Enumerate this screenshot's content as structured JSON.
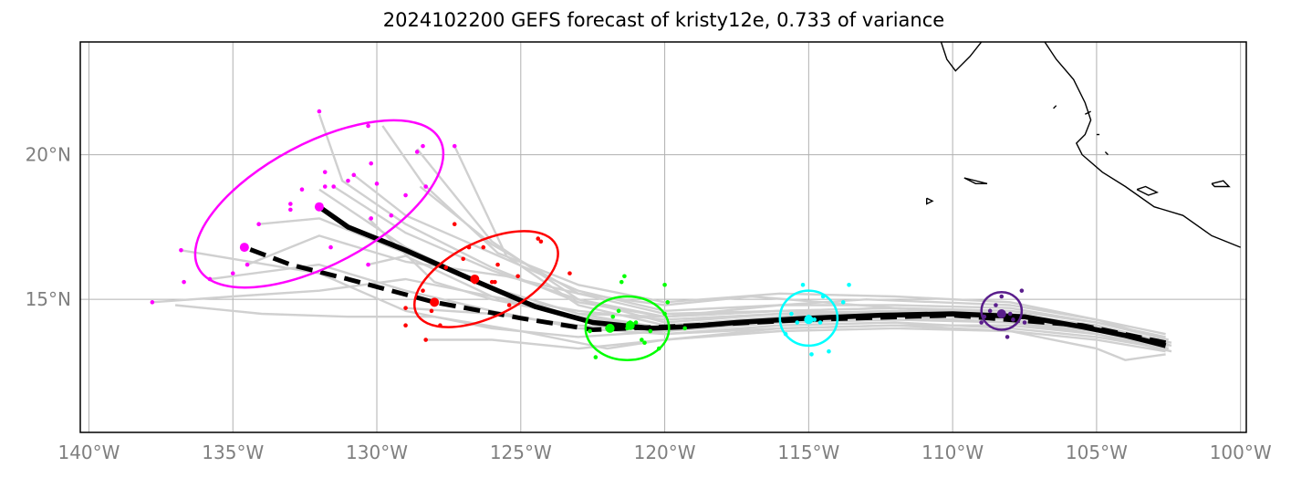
{
  "title": "2024102200 GEFS forecast of kristy12e, 0.733 of variance",
  "map": {
    "lon_range": [
      -140.3,
      -99.8
    ],
    "lat_range": [
      10.4,
      23.9
    ],
    "lon_ticks": [
      -140,
      -135,
      -130,
      -125,
      -120,
      -115,
      -110,
      -105,
      -100
    ],
    "lon_tick_labels": [
      "140°W",
      "135°W",
      "130°W",
      "125°W",
      "120°W",
      "115°W",
      "110°W",
      "105°W",
      "100°W"
    ],
    "lat_ticks": [
      15,
      20
    ],
    "lat_tick_labels": [
      "15°N",
      "20°N"
    ],
    "grid": true,
    "colors": {
      "ensemble_track": "#d0d0d0",
      "mean_track": "#000000",
      "coastline": "#000000",
      "grid": "#b0b0b0",
      "tick_label": "#7f7f7f"
    }
  },
  "mean_track": [
    [
      -102.6,
      13.4
    ],
    [
      -104.0,
      13.75
    ],
    [
      -105.5,
      14.05
    ],
    [
      -107.5,
      14.4
    ],
    [
      -110.0,
      14.5
    ],
    [
      -112.5,
      14.45
    ],
    [
      -115.0,
      14.35
    ],
    [
      -117.5,
      14.2
    ],
    [
      -119.3,
      14.05
    ],
    [
      -120.5,
      14.0
    ],
    [
      -122.5,
      14.2
    ],
    [
      -124.5,
      14.75
    ],
    [
      -126.5,
      15.6
    ],
    [
      -129.0,
      16.7
    ],
    [
      -131.0,
      17.5
    ],
    [
      -132.0,
      18.2
    ]
  ],
  "mean_track_dashed": [
    [
      -102.6,
      13.5
    ],
    [
      -105.5,
      14.1
    ],
    [
      -110.0,
      14.45
    ],
    [
      -115.0,
      14.3
    ],
    [
      -120.0,
      14.05
    ],
    [
      -122.5,
      13.95
    ],
    [
      -125.0,
      14.35
    ],
    [
      -128.0,
      14.9
    ],
    [
      -131.0,
      15.7
    ],
    [
      -133.0,
      16.2
    ],
    [
      -134.6,
      16.8
    ]
  ],
  "ellipses": [
    {
      "color": "#ff00ff",
      "center": [
        -132.0,
        18.3
      ],
      "width_deg": 9.5,
      "height_deg": 4.2,
      "angle_deg": 28
    },
    {
      "color": "#ff0000",
      "center": [
        -126.2,
        15.7
      ],
      "width_deg": 5.4,
      "height_deg": 2.6,
      "angle_deg": 26
    },
    {
      "color": "#00ff00",
      "center": [
        -121.3,
        14.0
      ],
      "width_deg": 2.9,
      "height_deg": 2.2,
      "angle_deg": 0
    },
    {
      "color": "#00ffff",
      "center": [
        -115.0,
        14.35
      ],
      "width_deg": 2.0,
      "height_deg": 1.9,
      "angle_deg": 0
    },
    {
      "color": "#5a1e8c",
      "center": [
        -108.3,
        14.6
      ],
      "width_deg": 1.4,
      "height_deg": 1.3,
      "angle_deg": 0
    }
  ],
  "member_points": {
    "#ff00ff": [
      [
        -137.8,
        14.9
      ],
      [
        -136.8,
        16.7
      ],
      [
        -135.8,
        15.7
      ],
      [
        -135.0,
        15.9
      ],
      [
        -134.5,
        16.2
      ],
      [
        -134.1,
        17.6
      ],
      [
        -133.0,
        18.3
      ],
      [
        -132.6,
        18.8
      ],
      [
        -132.0,
        21.5
      ],
      [
        -131.8,
        19.4
      ],
      [
        -131.5,
        18.9
      ],
      [
        -131.0,
        19.1
      ],
      [
        -130.8,
        19.3
      ],
      [
        -130.3,
        16.2
      ],
      [
        -130.3,
        21.0
      ],
      [
        -130.0,
        19.0
      ],
      [
        -129.5,
        17.9
      ],
      [
        -129.0,
        18.6
      ],
      [
        -128.6,
        20.1
      ],
      [
        -128.4,
        20.3
      ],
      [
        -128.3,
        18.9
      ],
      [
        -127.3,
        20.3
      ],
      [
        -136.7,
        15.6
      ],
      [
        -133.0,
        18.1
      ],
      [
        -131.6,
        16.8
      ],
      [
        -130.2,
        17.8
      ],
      [
        -130.2,
        19.7
      ],
      [
        -131.8,
        18.9
      ]
    ],
    "#ff0000": [
      [
        -129.0,
        14.1
      ],
      [
        -129.0,
        14.7
      ],
      [
        -128.4,
        15.3
      ],
      [
        -128.3,
        13.6
      ],
      [
        -128.0,
        14.9
      ],
      [
        -127.6,
        16.1
      ],
      [
        -127.3,
        17.6
      ],
      [
        -127.0,
        16.4
      ],
      [
        -126.8,
        16.8
      ],
      [
        -126.3,
        16.8
      ],
      [
        -126.0,
        15.6
      ],
      [
        -125.8,
        16.2
      ],
      [
        -125.4,
        14.8
      ],
      [
        -125.1,
        15.8
      ],
      [
        -124.3,
        17.0
      ],
      [
        -123.3,
        15.9
      ],
      [
        -127.8,
        14.1
      ],
      [
        -128.1,
        14.6
      ],
      [
        -126.6,
        15.6
      ],
      [
        -125.9,
        15.6
      ],
      [
        -124.4,
        17.1
      ]
    ],
    "#00ff00": [
      [
        -122.6,
        13.9
      ],
      [
        -122.4,
        13.0
      ],
      [
        -121.8,
        14.4
      ],
      [
        -121.6,
        14.6
      ],
      [
        -121.4,
        15.8
      ],
      [
        -121.0,
        14.2
      ],
      [
        -120.8,
        13.6
      ],
      [
        -120.5,
        13.9
      ],
      [
        -120.2,
        13.3
      ],
      [
        -120.0,
        14.5
      ],
      [
        -119.9,
        14.9
      ],
      [
        -119.3,
        14.0
      ],
      [
        -121.2,
        14.2
      ],
      [
        -122.0,
        14.0
      ],
      [
        -121.3,
        14.0
      ],
      [
        -120.0,
        15.5
      ],
      [
        -120.7,
        13.5
      ],
      [
        -121.5,
        15.6
      ]
    ],
    "#00ffff": [
      [
        -115.8,
        13.8
      ],
      [
        -115.6,
        14.5
      ],
      [
        -115.4,
        14.2
      ],
      [
        -115.2,
        15.5
      ],
      [
        -114.9,
        13.1
      ],
      [
        -114.6,
        14.2
      ],
      [
        -114.5,
        15.1
      ],
      [
        -114.3,
        13.2
      ],
      [
        -113.8,
        14.9
      ],
      [
        -113.6,
        15.5
      ],
      [
        -115.0,
        14.4
      ],
      [
        -114.8,
        14.3
      ]
    ],
    "#5a1e8c": [
      [
        -108.9,
        14.4
      ],
      [
        -108.7,
        14.6
      ],
      [
        -108.5,
        14.8
      ],
      [
        -108.3,
        15.1
      ],
      [
        -108.1,
        13.7
      ],
      [
        -107.9,
        14.3
      ],
      [
        -107.6,
        15.3
      ],
      [
        -107.5,
        14.2
      ],
      [
        -108.3,
        14.5
      ],
      [
        -108.0,
        14.5
      ],
      [
        -109.0,
        14.2
      ]
    ]
  },
  "mean_points": [
    {
      "color": "#ff00ff",
      "lonlat": [
        -132.0,
        18.2
      ]
    },
    {
      "color": "#ff00ff",
      "lonlat": [
        -134.6,
        16.8
      ]
    },
    {
      "color": "#ff0000",
      "lonlat": [
        -126.6,
        15.7
      ]
    },
    {
      "color": "#ff0000",
      "lonlat": [
        -128.0,
        14.9
      ]
    },
    {
      "color": "#00ff00",
      "lonlat": [
        -121.2,
        14.1
      ]
    },
    {
      "color": "#00ff00",
      "lonlat": [
        -121.9,
        14.0
      ]
    },
    {
      "color": "#00ffff",
      "lonlat": [
        -115.0,
        14.3
      ]
    },
    {
      "color": "#5a1e8c",
      "lonlat": [
        -108.3,
        14.5
      ]
    }
  ],
  "ensemble_tracks": [
    [
      [
        -102.5,
        13.3
      ],
      [
        -105,
        13.9
      ],
      [
        -108,
        14.3
      ],
      [
        -112,
        14.5
      ],
      [
        -116,
        14.6
      ],
      [
        -120,
        14.4
      ],
      [
        -123,
        14.9
      ],
      [
        -126,
        16.1
      ],
      [
        -129,
        17.6
      ],
      [
        -131.2,
        19.1
      ],
      [
        -132,
        21.4
      ]
    ],
    [
      [
        -102.5,
        13.4
      ],
      [
        -105,
        14.0
      ],
      [
        -108,
        14.4
      ],
      [
        -112,
        14.6
      ],
      [
        -116,
        14.5
      ],
      [
        -120,
        14.2
      ],
      [
        -123,
        15.0
      ],
      [
        -126,
        17.0
      ],
      [
        -128.6,
        20.2
      ]
    ],
    [
      [
        -102.5,
        13.5
      ],
      [
        -105,
        14.1
      ],
      [
        -108,
        14.5
      ],
      [
        -112,
        14.6
      ],
      [
        -116,
        14.4
      ],
      [
        -120,
        14.1
      ],
      [
        -123,
        14.8
      ],
      [
        -125.5,
        16.5
      ],
      [
        -127.3,
        20.3
      ]
    ],
    [
      [
        -102.5,
        13.6
      ],
      [
        -105,
        14.2
      ],
      [
        -108,
        14.6
      ],
      [
        -112,
        14.7
      ],
      [
        -116,
        14.6
      ],
      [
        -120,
        14.5
      ],
      [
        -123,
        15.2
      ],
      [
        -126,
        16.9
      ],
      [
        -128.5,
        18.9
      ]
    ],
    [
      [
        -102.4,
        13.2
      ],
      [
        -105,
        13.8
      ],
      [
        -108,
        14.2
      ],
      [
        -112,
        14.4
      ],
      [
        -116,
        14.4
      ],
      [
        -120,
        14.0
      ],
      [
        -123,
        14.5
      ],
      [
        -126,
        15.4
      ],
      [
        -129,
        16.6
      ],
      [
        -132,
        17.8
      ],
      [
        -134.1,
        17.6
      ]
    ],
    [
      [
        -102.4,
        13.4
      ],
      [
        -105,
        14.0
      ],
      [
        -108,
        14.4
      ],
      [
        -112,
        14.5
      ],
      [
        -116,
        14.5
      ],
      [
        -120,
        14.3
      ],
      [
        -123,
        14.6
      ],
      [
        -126,
        15.1
      ],
      [
        -129,
        15.7
      ],
      [
        -132,
        15.3
      ],
      [
        -135,
        15.1
      ],
      [
        -137.8,
        14.9
      ]
    ],
    [
      [
        -102.4,
        13.5
      ],
      [
        -105,
        14.0
      ],
      [
        -108,
        14.5
      ],
      [
        -112,
        14.6
      ],
      [
        -116,
        14.3
      ],
      [
        -120,
        13.9
      ],
      [
        -123,
        13.7
      ],
      [
        -126,
        14.0
      ],
      [
        -129,
        14.6
      ],
      [
        -132,
        15.9
      ],
      [
        -135,
        16.4
      ],
      [
        -136.8,
        16.7
      ]
    ],
    [
      [
        -102.6,
        13.7
      ],
      [
        -105,
        14.2
      ],
      [
        -108,
        14.7
      ],
      [
        -112,
        14.8
      ],
      [
        -116,
        14.8
      ],
      [
        -120,
        14.4
      ],
      [
        -123,
        14.5
      ],
      [
        -126,
        15.4
      ],
      [
        -129,
        16.8
      ],
      [
        -132,
        18.8
      ]
    ],
    [
      [
        -102.6,
        13.1
      ],
      [
        -104,
        12.9
      ],
      [
        -105,
        13.3
      ],
      [
        -108,
        13.9
      ],
      [
        -112,
        14.1
      ],
      [
        -116,
        14.0
      ],
      [
        -120,
        13.6
      ],
      [
        -123,
        13.3
      ],
      [
        -126,
        13.6
      ],
      [
        -128.3,
        13.6
      ]
    ],
    [
      [
        -102.6,
        13.4
      ],
      [
        -105,
        13.9
      ],
      [
        -108,
        14.2
      ],
      [
        -112,
        14.3
      ],
      [
        -116,
        14.2
      ],
      [
        -120,
        13.9
      ],
      [
        -123,
        14.1
      ],
      [
        -126,
        14.5
      ],
      [
        -129,
        14.7
      ]
    ],
    [
      [
        -102.6,
        13.5
      ],
      [
        -105,
        14.1
      ],
      [
        -108,
        14.4
      ],
      [
        -112,
        14.7
      ],
      [
        -117,
        15.1
      ],
      [
        -120,
        14.8
      ],
      [
        -123,
        15.2
      ],
      [
        -125.5,
        15.8
      ],
      [
        -129,
        16.3
      ],
      [
        -132,
        17.2
      ],
      [
        -134.5,
        16.2
      ]
    ],
    [
      [
        -102.6,
        13.3
      ],
      [
        -105,
        13.7
      ],
      [
        -108,
        14.0
      ],
      [
        -112,
        14.2
      ],
      [
        -116,
        14.1
      ],
      [
        -120,
        13.8
      ],
      [
        -123,
        14.3
      ],
      [
        -126,
        15.1
      ],
      [
        -129,
        16.5
      ],
      [
        -130.3,
        16.2
      ]
    ],
    [
      [
        -102.6,
        13.6
      ],
      [
        -105,
        14.3
      ],
      [
        -108,
        14.8
      ],
      [
        -113,
        15.0
      ],
      [
        -116,
        14.8
      ],
      [
        -120,
        14.6
      ],
      [
        -123,
        15.3
      ],
      [
        -126,
        16.6
      ],
      [
        -129,
        17.9
      ],
      [
        -130.8,
        19.3
      ]
    ],
    [
      [
        -102.6,
        13.2
      ],
      [
        -105,
        13.6
      ],
      [
        -108,
        13.9
      ],
      [
        -112,
        14.0
      ],
      [
        -116,
        13.9
      ],
      [
        -120,
        13.6
      ],
      [
        -122,
        13.3
      ],
      [
        -125,
        13.9
      ],
      [
        -128,
        14.4
      ],
      [
        -131,
        14.4
      ],
      [
        -134,
        14.5
      ],
      [
        -137,
        14.8
      ]
    ],
    [
      [
        -102.6,
        13.8
      ],
      [
        -105,
        14.3
      ],
      [
        -108,
        14.9
      ],
      [
        -112,
        15.1
      ],
      [
        -116,
        15.2
      ],
      [
        -120,
        14.9
      ],
      [
        -123,
        15.5
      ],
      [
        -125.8,
        16.6
      ],
      [
        -128.4,
        19.0
      ],
      [
        -129.8,
        21.0
      ]
    ],
    [
      [
        -102.6,
        13.3
      ],
      [
        -105,
        13.8
      ],
      [
        -108,
        14.1
      ],
      [
        -112,
        14.1
      ],
      [
        -116,
        14.0
      ],
      [
        -120,
        13.8
      ],
      [
        -123,
        14.0
      ],
      [
        -126,
        14.6
      ],
      [
        -129,
        15.3
      ],
      [
        -132,
        16.2
      ],
      [
        -135.8,
        15.7
      ]
    ],
    [
      [
        -102.6,
        13.5
      ],
      [
        -105,
        14.0
      ],
      [
        -108,
        14.5
      ],
      [
        -112,
        14.7
      ],
      [
        -116,
        14.6
      ],
      [
        -120,
        14.4
      ],
      [
        -123,
        15.0
      ],
      [
        -126,
        16.0
      ],
      [
        -129,
        17.3
      ],
      [
        -131.5,
        18.9
      ]
    ],
    [
      [
        -102.6,
        13.4
      ],
      [
        -105,
        13.9
      ],
      [
        -108,
        14.3
      ],
      [
        -112,
        14.5
      ],
      [
        -116,
        14.3
      ],
      [
        -120,
        14.0
      ],
      [
        -123,
        14.4
      ],
      [
        -126,
        15.0
      ],
      [
        -128,
        15.6
      ],
      [
        -130.3,
        17.8
      ]
    ]
  ],
  "coastlines": [
    [
      [
        -100.0,
        16.8
      ],
      [
        -101.0,
        17.2
      ],
      [
        -102.0,
        17.9
      ],
      [
        -103.0,
        18.2
      ],
      [
        -104.0,
        18.9
      ],
      [
        -104.8,
        19.4
      ],
      [
        -105.5,
        20.0
      ],
      [
        -105.7,
        20.4
      ],
      [
        -105.4,
        20.7
      ],
      [
        -105.2,
        21.2
      ],
      [
        -105.4,
        21.8
      ],
      [
        -105.8,
        22.6
      ],
      [
        -106.4,
        23.3
      ],
      [
        -106.8,
        23.9
      ]
    ],
    [
      [
        -109.0,
        23.9
      ],
      [
        -109.4,
        23.4
      ],
      [
        -109.9,
        22.9
      ],
      [
        -110.2,
        23.3
      ],
      [
        -110.4,
        23.9
      ]
    ],
    [
      [
        -105.4,
        21.4
      ],
      [
        -105.2,
        21.5
      ]
    ],
    [
      [
        -106.5,
        21.6
      ],
      [
        -106.4,
        21.7
      ]
    ],
    [
      [
        -109.6,
        19.2
      ],
      [
        -109.2,
        19.0
      ],
      [
        -108.8,
        19.0
      ],
      [
        -109.6,
        19.2
      ]
    ],
    [
      [
        -103.6,
        18.8
      ],
      [
        -103.3,
        18.9
      ],
      [
        -102.9,
        18.7
      ],
      [
        -103.2,
        18.6
      ],
      [
        -103.6,
        18.8
      ]
    ],
    [
      [
        -101.0,
        19.0
      ],
      [
        -100.6,
        19.1
      ],
      [
        -100.4,
        18.9
      ],
      [
        -100.9,
        18.9
      ],
      [
        -101.0,
        19.0
      ]
    ],
    [
      [
        -110.9,
        18.5
      ],
      [
        -110.7,
        18.4
      ],
      [
        -110.9,
        18.3
      ],
      [
        -110.9,
        18.5
      ]
    ],
    [
      [
        -105.0,
        20.7
      ],
      [
        -104.9,
        20.7
      ]
    ],
    [
      [
        -104.7,
        20.1
      ],
      [
        -104.6,
        20.0
      ]
    ]
  ]
}
